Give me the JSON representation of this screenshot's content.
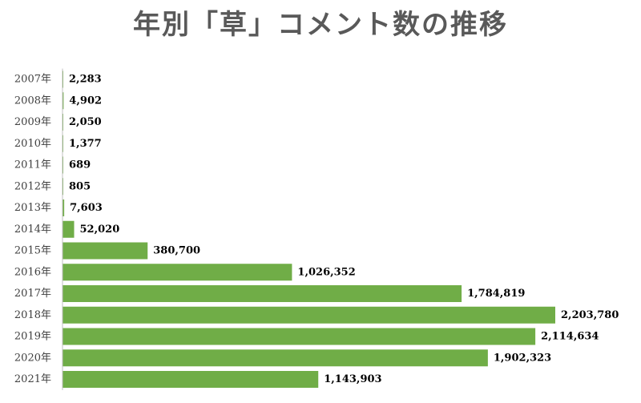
{
  "chart_data": {
    "type": "bar",
    "orientation": "horizontal",
    "title": "年別「草」コメント数の推移",
    "xlabel": "",
    "ylabel": "",
    "grid": false,
    "legend": "none",
    "bar_color": "#70AD47",
    "axis_color": "#BFBFBF",
    "xlim": [
      0,
      2203780
    ],
    "categories": [
      "2007年",
      "2008年",
      "2009年",
      "2010年",
      "2011年",
      "2012年",
      "2013年",
      "2014年",
      "2015年",
      "2016年",
      "2017年",
      "2018年",
      "2019年",
      "2020年",
      "2021年"
    ],
    "values": [
      2283,
      4902,
      2050,
      1377,
      689,
      805,
      7603,
      52020,
      380700,
      1026352,
      1784819,
      2203780,
      2114634,
      1902323,
      1143903
    ],
    "value_labels": [
      "2,283",
      "4,902",
      "2,050",
      "1,377",
      "689",
      "805",
      "7,603",
      "52,020",
      "380,700",
      "1,026,352",
      "1,784,819",
      "2,203,780",
      "2,114,634",
      "1,902,323",
      "1,143,903"
    ]
  }
}
